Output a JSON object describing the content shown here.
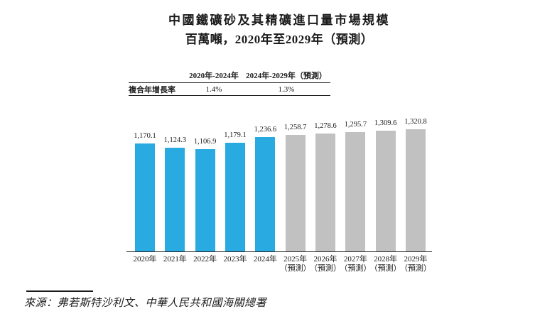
{
  "title": "中國鐵礦砂及其精礦進口量市場規模",
  "subtitle": "百萬噸，2020年至2029年（預測）",
  "cagr_table": {
    "row_label": "複合年增長率",
    "columns": [
      "2020年-2024年",
      "2024年-2029年（預測）"
    ],
    "values": [
      "1.4%",
      "1.3%"
    ]
  },
  "chart_data": {
    "type": "bar",
    "title": "中國鐵礦砂及其精礦進口量市場規模",
    "subtitle": "百萬噸，2020年至2029年（預測）",
    "ylabel": "百萬噸",
    "xlabel": "",
    "categories": [
      "2020年",
      "2021年",
      "2022年",
      "2023年",
      "2024年",
      "2025年（預測）",
      "2026年（預測）",
      "2027年（預測）",
      "2028年（預測）",
      "2029年（預測）"
    ],
    "category_years": [
      "2020年",
      "2021年",
      "2022年",
      "2023年",
      "2024年",
      "2025年",
      "2026年",
      "2027年",
      "2028年",
      "2029年"
    ],
    "category_notes": [
      "",
      "",
      "",
      "",
      "",
      "（預測）",
      "（預測）",
      "（預測）",
      "（預測）",
      "（預測）"
    ],
    "values": [
      1170.1,
      1124.3,
      1106.9,
      1179.1,
      1236.6,
      1258.7,
      1278.6,
      1295.7,
      1309.6,
      1320.8
    ],
    "value_labels": [
      "1,170.1",
      "1,124.3",
      "1,106.9",
      "1,179.1",
      "1,236.6",
      "1,258.7",
      "1,278.6",
      "1,295.7",
      "1,309.6",
      "1,320.8"
    ],
    "actual_count": 5,
    "colors": {
      "actual": "#29ABE2",
      "forecast": "#C1C1C1"
    },
    "ylim": [
      0,
      1400
    ],
    "grid": false,
    "legend": false
  },
  "source": "來源：弗若斯特沙利文、中華人民共和國海關總署"
}
